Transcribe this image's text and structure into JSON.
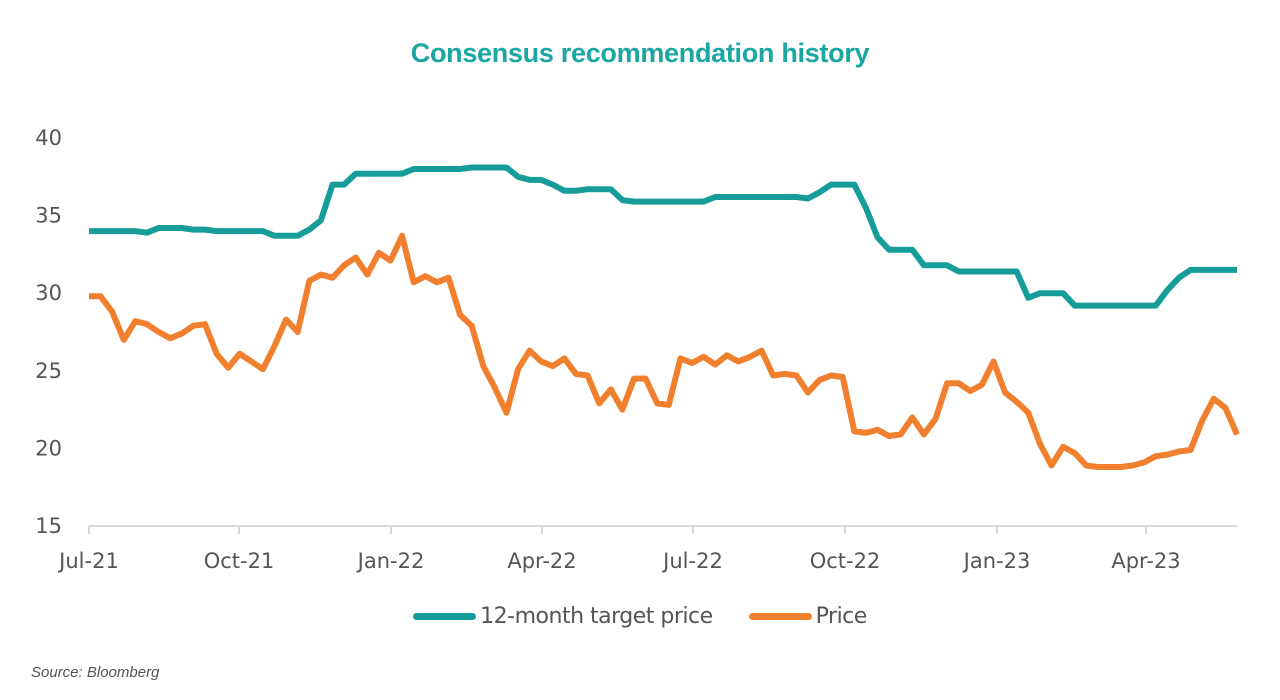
{
  "chart_data": {
    "type": "line",
    "title": "Consensus recommendation history",
    "xlabel": "",
    "ylabel": "",
    "ylim": [
      15,
      40
    ],
    "yticks": [
      15,
      20,
      25,
      30,
      35,
      40
    ],
    "xtick_labels": [
      "Jul-21",
      "Oct-21",
      "Jan-22",
      "Apr-22",
      "Jul-22",
      "Oct-22",
      "Jan-23",
      "Apr-23"
    ],
    "x_start": "Jul-21",
    "x_frequency": "weekly",
    "grid": false,
    "legend_position": "bottom",
    "series": [
      {
        "name": "12-month target price",
        "color": "#169d99",
        "values": [
          34.0,
          34.0,
          34.0,
          34.0,
          34.0,
          33.9,
          34.2,
          34.2,
          34.2,
          34.1,
          34.1,
          34.0,
          34.0,
          34.0,
          34.0,
          34.0,
          33.7,
          33.7,
          33.7,
          34.1,
          34.7,
          37.0,
          37.0,
          37.7,
          37.7,
          37.7,
          37.7,
          37.7,
          38.0,
          38.0,
          38.0,
          38.0,
          38.0,
          38.1,
          38.1,
          38.1,
          38.1,
          37.5,
          37.3,
          37.3,
          37.0,
          36.6,
          36.6,
          36.7,
          36.7,
          36.7,
          36.0,
          35.9,
          35.9,
          35.9,
          35.9,
          35.9,
          35.9,
          35.9,
          36.2,
          36.2,
          36.2,
          36.2,
          36.2,
          36.2,
          36.2,
          36.2,
          36.1,
          36.5,
          37.0,
          37.0,
          37.0,
          35.5,
          33.6,
          32.8,
          32.8,
          32.8,
          31.8,
          31.8,
          31.8,
          31.4,
          31.4,
          31.4,
          31.4,
          31.4,
          31.4,
          29.7,
          30.0,
          30.0,
          30.0,
          29.2,
          29.2,
          29.2,
          29.2,
          29.2,
          29.2,
          29.2,
          29.2,
          30.2,
          31.0,
          31.5,
          31.5,
          31.5,
          31.5,
          31.5
        ]
      },
      {
        "name": "Price",
        "color": "#f07f2e",
        "values": [
          29.8,
          29.8,
          28.8,
          27.0,
          28.2,
          28.0,
          27.5,
          27.1,
          27.4,
          27.9,
          28.0,
          26.1,
          25.2,
          26.1,
          25.6,
          25.1,
          26.6,
          28.3,
          27.5,
          30.8,
          31.2,
          31.0,
          31.8,
          32.3,
          31.2,
          32.6,
          32.1,
          33.7,
          30.7,
          31.1,
          30.7,
          31.0,
          28.6,
          27.9,
          25.3,
          23.9,
          22.3,
          25.1,
          26.3,
          25.6,
          25.3,
          25.8,
          24.8,
          24.7,
          22.9,
          23.8,
          22.5,
          24.5,
          24.5,
          22.9,
          22.8,
          25.8,
          25.5,
          25.9,
          25.4,
          26.0,
          25.6,
          25.9,
          26.3,
          24.7,
          24.8,
          24.7,
          23.6,
          24.4,
          24.7,
          24.6,
          21.1,
          21.0,
          21.2,
          20.8,
          20.9,
          22.0,
          20.9,
          21.9,
          24.2,
          24.2,
          23.7,
          24.1,
          25.6,
          23.6,
          23.0,
          22.3,
          20.3,
          18.9,
          20.1,
          19.7,
          18.9,
          18.8,
          18.8,
          18.8,
          18.9,
          19.1,
          19.5,
          19.6,
          19.8,
          19.9,
          21.8,
          23.2,
          22.6,
          20.9
        ]
      }
    ]
  },
  "source": "Source: Bloomberg"
}
